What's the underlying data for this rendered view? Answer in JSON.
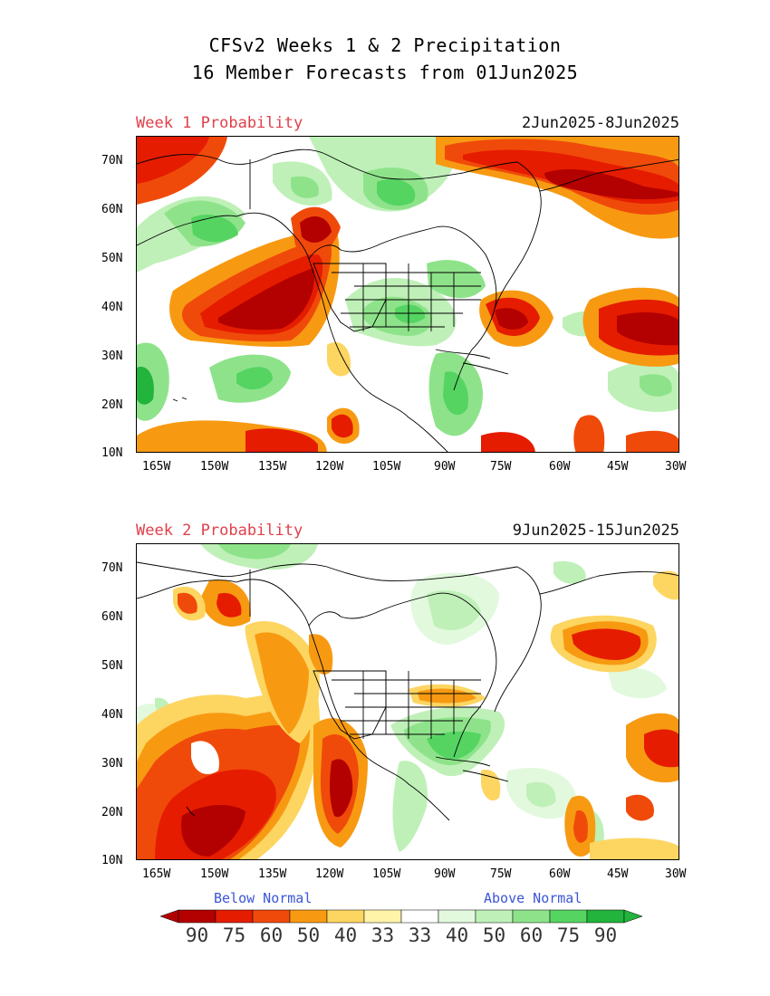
{
  "title": {
    "line1": "CFSv2 Weeks 1 & 2 Precipitation",
    "line2": "16 Member Forecasts from 01Jun2025"
  },
  "panels": [
    {
      "label": "Week 1 Probability",
      "date_range": "2Jun2025-8Jun2025"
    },
    {
      "label": "Week 2 Probability",
      "date_range": "9Jun2025-15Jun2025"
    }
  ],
  "lat_ticks": [
    "70N",
    "60N",
    "50N",
    "40N",
    "30N",
    "20N",
    "10N"
  ],
  "lon_ticks": [
    "165W",
    "150W",
    "135W",
    "120W",
    "105W",
    "90W",
    "75W",
    "60W",
    "45W",
    "30W"
  ],
  "colorbar": {
    "below_label": "Below Normal",
    "above_label": "Above Normal",
    "numbers": [
      "90",
      "75",
      "60",
      "50",
      "40",
      "33",
      "33",
      "40",
      "50",
      "60",
      "75",
      "90"
    ],
    "colors": [
      "#b30000",
      "#e51c00",
      "#f04a0a",
      "#f79a12",
      "#fdd561",
      "#fff4a8",
      "#ffffff",
      "#e2f9de",
      "#bff0b8",
      "#8ee38a",
      "#55d462",
      "#22b43c"
    ]
  }
}
